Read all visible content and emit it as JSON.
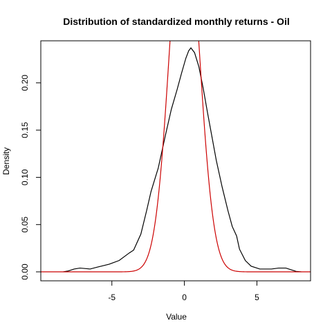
{
  "chart_data": {
    "type": "line",
    "title": "Distribution of standardized monthly returns - Oil",
    "xlabel": "Value",
    "ylabel": "Density",
    "xlim": [
      -9.9,
      8.7
    ],
    "ylim": [
      -0.0095,
      0.2445
    ],
    "x_ticks": [
      -5,
      0,
      5
    ],
    "x_tick_labels": [
      "-5",
      "0",
      "5"
    ],
    "y_ticks": [
      0.0,
      0.05,
      0.1,
      0.15,
      0.2
    ],
    "y_tick_labels": [
      "0.00",
      "0.05",
      "0.10",
      "0.15",
      "0.20"
    ],
    "grid": false,
    "legend": "none",
    "series": [
      {
        "color": "#000000",
        "style": "kernel density",
        "x": [
          -8.35,
          -8.0,
          -7.6,
          -7.2,
          -6.5,
          -6.0,
          -5.2,
          -4.5,
          -3.8,
          -3.5,
          -3.0,
          -2.6,
          -2.3,
          -1.8,
          -1.3,
          -0.9,
          -0.5,
          -0.2,
          0.1,
          0.3,
          0.45,
          0.7,
          1.0,
          1.3,
          1.6,
          1.9,
          2.2,
          2.6,
          3.0,
          3.3,
          3.6,
          3.8,
          4.2,
          4.6,
          5.2,
          5.6,
          6.0,
          6.5,
          7.0,
          7.4,
          7.7,
          8.05
        ],
        "y": [
          0.0,
          0.001,
          0.003,
          0.004,
          0.003,
          0.005,
          0.008,
          0.012,
          0.02,
          0.023,
          0.04,
          0.065,
          0.085,
          0.11,
          0.145,
          0.172,
          0.193,
          0.21,
          0.226,
          0.234,
          0.237,
          0.232,
          0.217,
          0.194,
          0.168,
          0.143,
          0.118,
          0.09,
          0.065,
          0.048,
          0.038,
          0.024,
          0.012,
          0.006,
          0.003,
          0.003,
          0.003,
          0.004,
          0.004,
          0.002,
          0.0005,
          0.0
        ]
      },
      {
        "color": "#cc0000",
        "style": "normal density",
        "mean": 0,
        "sd": 1,
        "x_range": [
          -9.9,
          8.7
        ]
      }
    ]
  }
}
